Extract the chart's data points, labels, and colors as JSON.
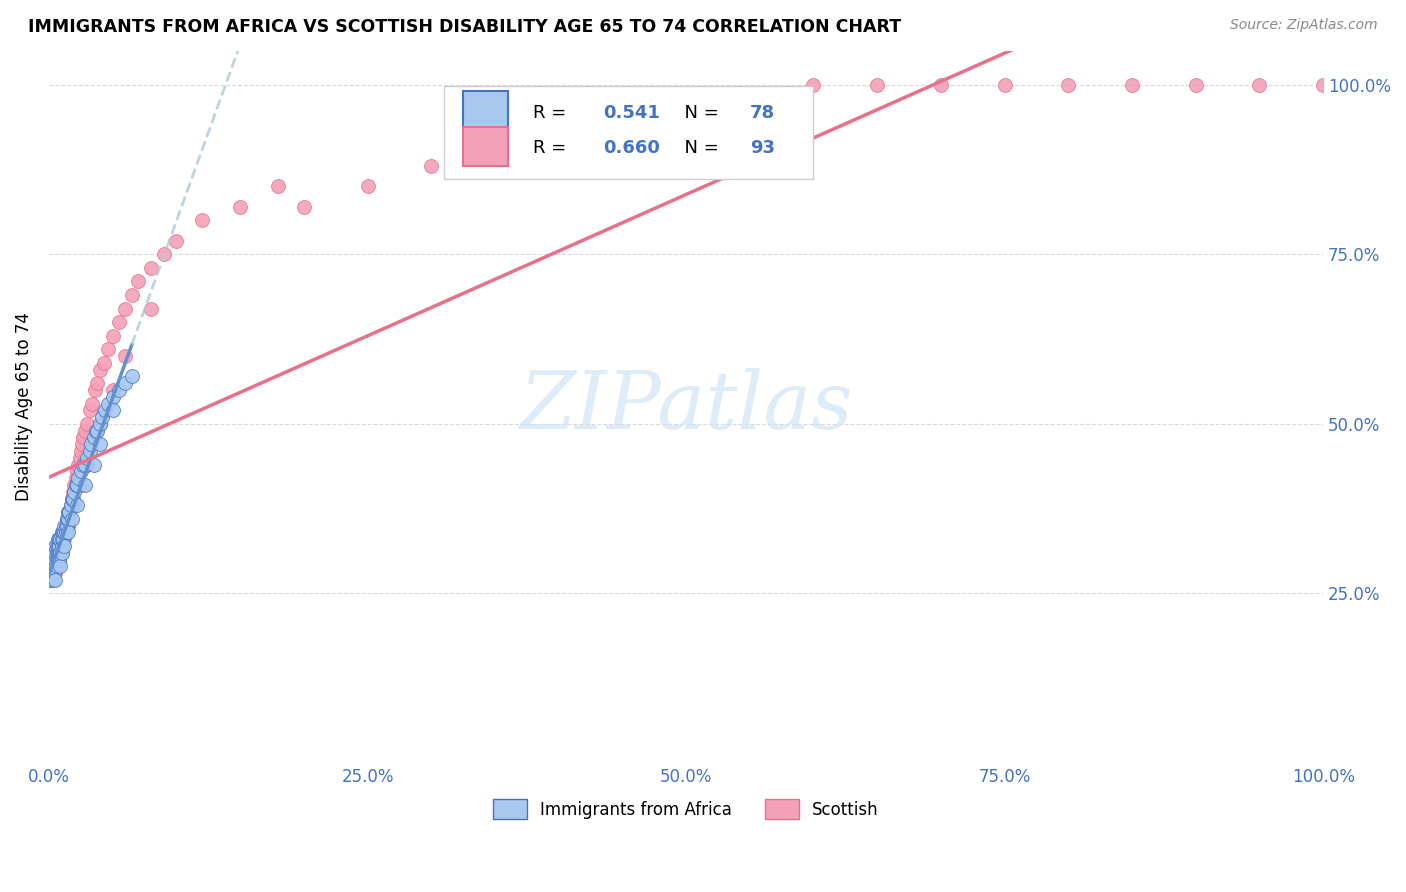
{
  "title": "IMMIGRANTS FROM AFRICA VS SCOTTISH DISABILITY AGE 65 TO 74 CORRELATION CHART",
  "source": "Source: ZipAtlas.com",
  "ylabel": "Disability Age 65 to 74",
  "legend_label1": "Immigrants from Africa",
  "legend_label2": "Scottish",
  "r1": 0.541,
  "n1": 78,
  "r2": 0.66,
  "n2": 93,
  "color_blue": "#A8C8F0",
  "color_pink": "#F4A0B8",
  "color_blue_dark": "#4472C4",
  "color_pink_dark": "#E8708A",
  "color_blue_line": "#6090D0",
  "color_pink_line": "#E8708A",
  "color_gray_dashed": "#B0C8D8",
  "watermark_color": "#D0E4F4",
  "blue_x": [
    0.001,
    0.002,
    0.002,
    0.003,
    0.003,
    0.004,
    0.004,
    0.005,
    0.005,
    0.005,
    0.005,
    0.006,
    0.006,
    0.006,
    0.007,
    0.007,
    0.007,
    0.008,
    0.008,
    0.008,
    0.009,
    0.009,
    0.01,
    0.01,
    0.01,
    0.011,
    0.011,
    0.012,
    0.012,
    0.013,
    0.013,
    0.014,
    0.014,
    0.015,
    0.015,
    0.016,
    0.017,
    0.018,
    0.019,
    0.02,
    0.021,
    0.022,
    0.023,
    0.025,
    0.027,
    0.028,
    0.03,
    0.032,
    0.033,
    0.035,
    0.037,
    0.038,
    0.04,
    0.042,
    0.044,
    0.046,
    0.05,
    0.055,
    0.06,
    0.065,
    0.001,
    0.002,
    0.003,
    0.004,
    0.005,
    0.006,
    0.007,
    0.008,
    0.009,
    0.01,
    0.012,
    0.015,
    0.018,
    0.022,
    0.028,
    0.035,
    0.04,
    0.05
  ],
  "blue_y": [
    0.29,
    0.3,
    0.31,
    0.3,
    0.28,
    0.3,
    0.31,
    0.29,
    0.3,
    0.31,
    0.32,
    0.3,
    0.31,
    0.32,
    0.31,
    0.32,
    0.33,
    0.31,
    0.32,
    0.33,
    0.31,
    0.33,
    0.32,
    0.33,
    0.34,
    0.33,
    0.34,
    0.34,
    0.35,
    0.34,
    0.35,
    0.35,
    0.36,
    0.36,
    0.37,
    0.37,
    0.38,
    0.39,
    0.39,
    0.4,
    0.41,
    0.41,
    0.42,
    0.43,
    0.44,
    0.44,
    0.45,
    0.46,
    0.47,
    0.48,
    0.49,
    0.49,
    0.5,
    0.51,
    0.52,
    0.53,
    0.54,
    0.55,
    0.56,
    0.57,
    0.27,
    0.28,
    0.27,
    0.28,
    0.27,
    0.29,
    0.3,
    0.3,
    0.29,
    0.31,
    0.32,
    0.34,
    0.36,
    0.38,
    0.41,
    0.44,
    0.47,
    0.52
  ],
  "pink_x": [
    0.001,
    0.001,
    0.002,
    0.002,
    0.003,
    0.003,
    0.003,
    0.004,
    0.004,
    0.005,
    0.005,
    0.005,
    0.006,
    0.006,
    0.007,
    0.007,
    0.008,
    0.008,
    0.009,
    0.009,
    0.01,
    0.01,
    0.011,
    0.011,
    0.012,
    0.013,
    0.013,
    0.014,
    0.015,
    0.015,
    0.016,
    0.017,
    0.018,
    0.019,
    0.02,
    0.021,
    0.022,
    0.023,
    0.024,
    0.025,
    0.026,
    0.027,
    0.028,
    0.03,
    0.032,
    0.034,
    0.036,
    0.038,
    0.04,
    0.043,
    0.046,
    0.05,
    0.055,
    0.06,
    0.065,
    0.07,
    0.08,
    0.09,
    0.1,
    0.12,
    0.15,
    0.18,
    0.2,
    0.25,
    0.3,
    0.35,
    0.4,
    0.45,
    0.5,
    0.55,
    0.6,
    0.65,
    0.7,
    0.75,
    0.8,
    0.85,
    0.9,
    0.95,
    1.0,
    0.002,
    0.004,
    0.006,
    0.008,
    0.01,
    0.015,
    0.02,
    0.025,
    0.03,
    0.04,
    0.05,
    0.06,
    0.08
  ],
  "pink_y": [
    0.28,
    0.29,
    0.28,
    0.3,
    0.27,
    0.29,
    0.3,
    0.29,
    0.3,
    0.28,
    0.29,
    0.3,
    0.3,
    0.31,
    0.3,
    0.32,
    0.31,
    0.33,
    0.31,
    0.32,
    0.31,
    0.33,
    0.32,
    0.34,
    0.33,
    0.34,
    0.35,
    0.36,
    0.35,
    0.37,
    0.37,
    0.38,
    0.39,
    0.4,
    0.41,
    0.42,
    0.43,
    0.44,
    0.45,
    0.46,
    0.47,
    0.48,
    0.49,
    0.5,
    0.52,
    0.53,
    0.55,
    0.56,
    0.58,
    0.59,
    0.61,
    0.63,
    0.65,
    0.67,
    0.69,
    0.71,
    0.73,
    0.75,
    0.77,
    0.8,
    0.82,
    0.85,
    0.82,
    0.85,
    0.88,
    0.9,
    0.92,
    0.94,
    0.96,
    0.98,
    1.0,
    1.0,
    1.0,
    1.0,
    1.0,
    1.0,
    1.0,
    1.0,
    1.0,
    0.27,
    0.28,
    0.29,
    0.3,
    0.32,
    0.35,
    0.38,
    0.41,
    0.44,
    0.5,
    0.55,
    0.6,
    0.67
  ],
  "xlim": [
    0.0,
    1.0
  ],
  "ylim": [
    0.0,
    1.05
  ],
  "x_ticks": [
    0.0,
    0.25,
    0.5,
    0.75,
    1.0
  ],
  "x_tick_labels": [
    "0.0%",
    "25.0%",
    "50.0%",
    "75.0%",
    "100.0%"
  ],
  "y_ticks": [
    0.25,
    0.5,
    0.75,
    1.0
  ],
  "y_tick_labels": [
    "25.0%",
    "50.0%",
    "75.0%",
    "100.0%"
  ]
}
